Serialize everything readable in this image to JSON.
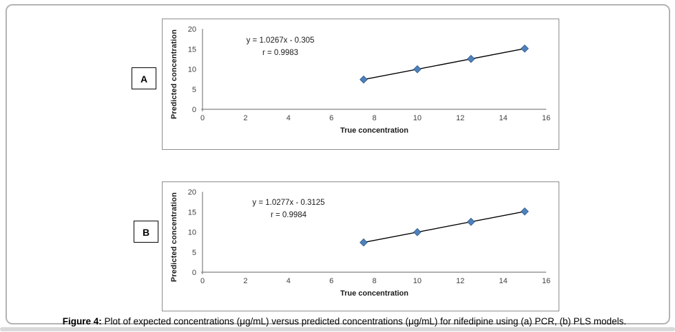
{
  "figure": {
    "caption_prefix": "Figure 4:",
    "caption_text": " Plot of expected concentrations (μg/mL) versus predicted concentrations (μg/mL) for nifedipine using (a) PCR, (b) PLS models."
  },
  "colors": {
    "marker_fill": "#4F81BD",
    "marker_stroke": "#3A6494",
    "trend_line": "#000000",
    "axis_line": "#808080",
    "tick_text": "#3f3f3f"
  },
  "chart_data": [
    {
      "type": "scatter",
      "panel_label": "A",
      "model": "PCR",
      "xlabel": "True concentration",
      "ylabel": "Predicted concentration",
      "x": [
        7.5,
        10,
        12.5,
        15
      ],
      "y": [
        7.4,
        9.96,
        12.53,
        15.1
      ],
      "trendline": {
        "slope": 1.0267,
        "intercept": -0.305
      },
      "annotation": {
        "equation": "y = 1.0267x - 0.305",
        "r": "r = 0.9983"
      },
      "xlim": [
        0,
        16
      ],
      "ylim": [
        0,
        20
      ],
      "xticks": [
        0,
        2,
        4,
        6,
        8,
        10,
        12,
        14,
        16
      ],
      "yticks": [
        0,
        5,
        10,
        15,
        20
      ],
      "grid": false,
      "legend": "none"
    },
    {
      "type": "scatter",
      "panel_label": "B",
      "model": "PLS",
      "xlabel": "True concentration",
      "ylabel": "Predicted concentration",
      "x": [
        7.5,
        10,
        12.5,
        15
      ],
      "y": [
        7.4,
        9.96,
        12.53,
        15.1
      ],
      "trendline": {
        "slope": 1.0277,
        "intercept": -0.3125
      },
      "annotation": {
        "equation": "y = 1.0277x - 0.3125",
        "r": "r = 0.9984"
      },
      "xlim": [
        0,
        16
      ],
      "ylim": [
        0,
        20
      ],
      "xticks": [
        0,
        2,
        4,
        6,
        8,
        10,
        12,
        14,
        16
      ],
      "yticks": [
        0,
        5,
        10,
        15,
        20
      ],
      "grid": false,
      "legend": "none"
    }
  ]
}
